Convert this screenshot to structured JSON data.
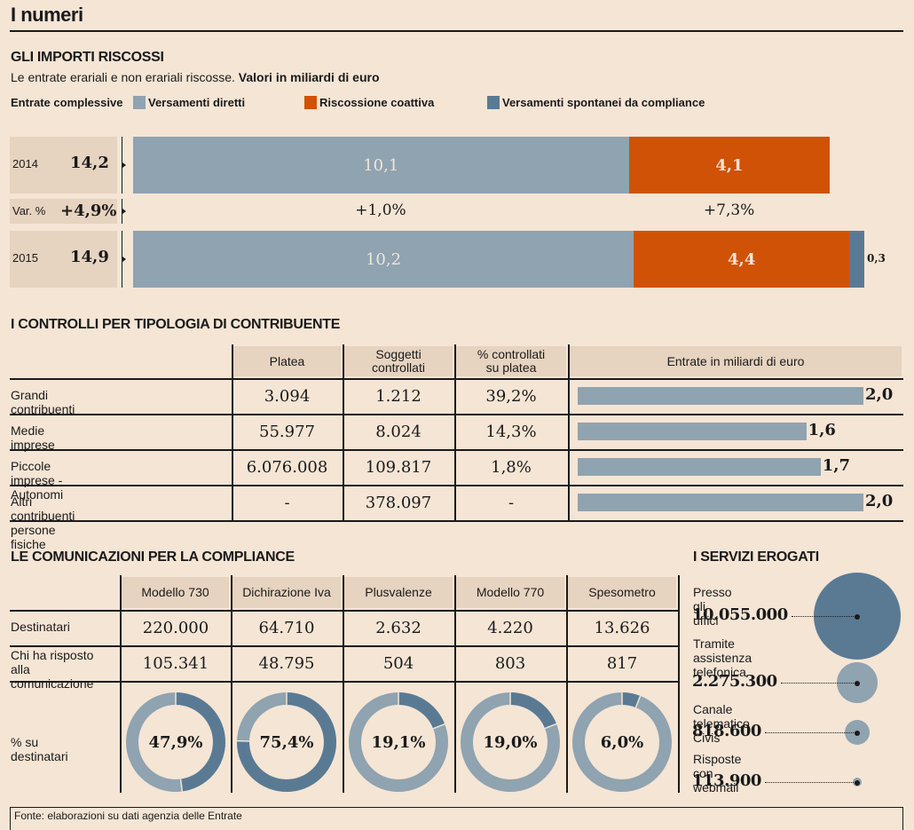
{
  "page_title": "I numeri",
  "colors": {
    "background": "#f5e5d5",
    "header_fill": "#e6d3c0",
    "versamenti_diretti": "#8fa3b0",
    "riscossione_coattiva": "#d05206",
    "versamenti_spontanei": "#5a7a94",
    "text": "#1a1a1a"
  },
  "section_importi": {
    "title": "GLI IMPORTI RISCOSSI",
    "subtitle_plain": "Le entrate erariali e non erariali riscosse. ",
    "subtitle_bold": "Valori in miliardi di euro",
    "legend_total": "Entrate complessive",
    "legend": [
      {
        "label": "Versamenti diretti",
        "color": "#8fa3b0"
      },
      {
        "label": "Riscossione coattiva",
        "color": "#d05206"
      },
      {
        "label": "Versamenti spontanei da compliance",
        "color": "#5a7a94"
      }
    ],
    "rows": [
      {
        "year": "2014",
        "total": "14,2",
        "segments": [
          {
            "value": 10.1,
            "label": "10,1"
          },
          {
            "value": 4.1,
            "label": "4,1"
          },
          {
            "value": 0,
            "label": ""
          }
        ]
      },
      {
        "year": "2015",
        "total": "14,9",
        "segments": [
          {
            "value": 10.2,
            "label": "10,2"
          },
          {
            "value": 4.4,
            "label": "4,4"
          },
          {
            "value": 0.3,
            "label": "0,3"
          }
        ]
      }
    ],
    "variation": {
      "label": "Var. %",
      "total": "+4,9%",
      "diretti": "+1,0%",
      "coattiva": "+7,3%"
    }
  },
  "section_controlli": {
    "title": "I CONTROLLI PER TIPOLOGIA DI CONTRIBUENTE",
    "headers": [
      "Platea",
      "Soggetti controllati",
      "% controllati su platea",
      "Entrate in miliardi di euro"
    ],
    "header_lines": [
      [
        "Platea"
      ],
      [
        "Soggetti",
        "controllati"
      ],
      [
        "% controllati",
        "su platea"
      ],
      [
        "Entrate in miliardi di euro"
      ]
    ],
    "rows": [
      {
        "label": "Grandi contribuenti",
        "platea": "3.094",
        "soggetti": "1.212",
        "perc": "39,2%",
        "entrate": 2.0,
        "entrate_label": "2,0"
      },
      {
        "label": "Medie imprese",
        "platea": "55.977",
        "soggetti": "8.024",
        "perc": "14,3%",
        "entrate": 1.6,
        "entrate_label": "1,6"
      },
      {
        "label": "Piccole imprese - Autonomi",
        "platea": "6.076.008",
        "soggetti": "109.817",
        "perc": "1,8%",
        "entrate": 1.7,
        "entrate_label": "1,7"
      },
      {
        "label": "Altri contribuenti persone fisiche",
        "platea": "-",
        "soggetti": "378.097",
        "perc": "-",
        "entrate": 2.0,
        "entrate_label": "2,0"
      }
    ]
  },
  "section_comunicazioni": {
    "title": "LE COMUNICAZIONI PER LA COMPLIANCE",
    "columns": [
      "Modello 730",
      "Dichirazione Iva",
      "Plusvalenze",
      "Modello 770",
      "Spesometro"
    ],
    "row_labels": {
      "destinatari": "Destinatari",
      "risposto_line1": "Chi ha risposto",
      "risposto_line2": "alla comunicazione",
      "percent": "% su destinatari"
    },
    "destinatari": [
      "220.000",
      "64.710",
      "2.632",
      "4.220",
      "13.626"
    ],
    "risposto": [
      "105.341",
      "48.795",
      "504",
      "803",
      "817"
    ],
    "percent": [
      47.9,
      75.4,
      19.1,
      19.0,
      6.0
    ],
    "percent_labels": [
      "47,9%",
      "75,4%",
      "19,1%",
      "19,0%",
      "6,0%"
    ]
  },
  "section_servizi": {
    "title": "I SERVIZI EROGATI",
    "items": [
      {
        "label_lines": [
          "Presso gli uffici"
        ],
        "value": 10055000,
        "value_label": "10.055.000",
        "color": "#5a7a94"
      },
      {
        "label_lines": [
          "Tramite assistenza",
          "telefonica"
        ],
        "value": 2275300,
        "value_label": "2.275.300",
        "color": "#8fa3b0"
      },
      {
        "label_lines": [
          "Canale telematico Civis"
        ],
        "value": 818600,
        "value_label": "818.600",
        "color": "#8fa3b0"
      },
      {
        "label_lines": [
          "Risposte con webmail"
        ],
        "value": 113900,
        "value_label": "113.900",
        "color": "#8fa3b0"
      }
    ]
  },
  "source": "Fonte: elaborazioni su dati agenzia delle Entrate",
  "chart_data": [
    {
      "type": "bar",
      "title": "GLI IMPORTI RISCOSSI",
      "subtitle": "Le entrate erariali e non erariali riscosse. Valori in miliardi di euro",
      "orientation": "horizontal-stacked",
      "categories": [
        "2014",
        "2015"
      ],
      "totals": [
        14.2,
        14.9
      ],
      "series": [
        {
          "name": "Versamenti diretti",
          "values": [
            10.1,
            10.2
          ]
        },
        {
          "name": "Riscossione coattiva",
          "values": [
            4.1,
            4.4
          ]
        },
        {
          "name": "Versamenti spontanei da compliance",
          "values": [
            0,
            0.3
          ]
        }
      ],
      "variation_percent": {
        "total": 4.9,
        "Versamenti diretti": 1.0,
        "Riscossione coattiva": 7.3
      },
      "legend": "top"
    },
    {
      "type": "table",
      "title": "I CONTROLLI PER TIPOLOGIA DI CONTRIBUENTE",
      "columns": [
        "",
        "Platea",
        "Soggetti controllati",
        "% controllati su platea",
        "Entrate in miliardi di euro"
      ],
      "rows": [
        [
          "Grandi contribuenti",
          "3.094",
          "1.212",
          "39,2%",
          2.0
        ],
        [
          "Medie imprese",
          "55.977",
          "8.024",
          "14,3%",
          1.6
        ],
        [
          "Piccole imprese - Autonomi",
          "6.076.008",
          "109.817",
          "1,8%",
          1.7
        ],
        [
          "Altri contribuenti persone fisiche",
          "-",
          "378.097",
          "-",
          2.0
        ]
      ]
    },
    {
      "type": "pie",
      "title": "LE COMUNICAZIONI PER LA COMPLIANCE - % su destinatari",
      "categories": [
        "Modello 730",
        "Dichirazione Iva",
        "Plusvalenze",
        "Modello 770",
        "Spesometro"
      ],
      "values": [
        47.9,
        75.4,
        19.1,
        19.0,
        6.0
      ],
      "destinatari": [
        220000,
        64710,
        2632,
        4220,
        13626
      ],
      "risposto": [
        105341,
        48795,
        504,
        803,
        817
      ]
    },
    {
      "type": "scatter",
      "title": "I SERVIZI EROGATI",
      "categories": [
        "Presso gli uffici",
        "Tramite assistenza telefonica",
        "Canale telematico Civis",
        "Risposte con webmail"
      ],
      "values": [
        10055000,
        2275300,
        818600,
        113900
      ]
    }
  ]
}
